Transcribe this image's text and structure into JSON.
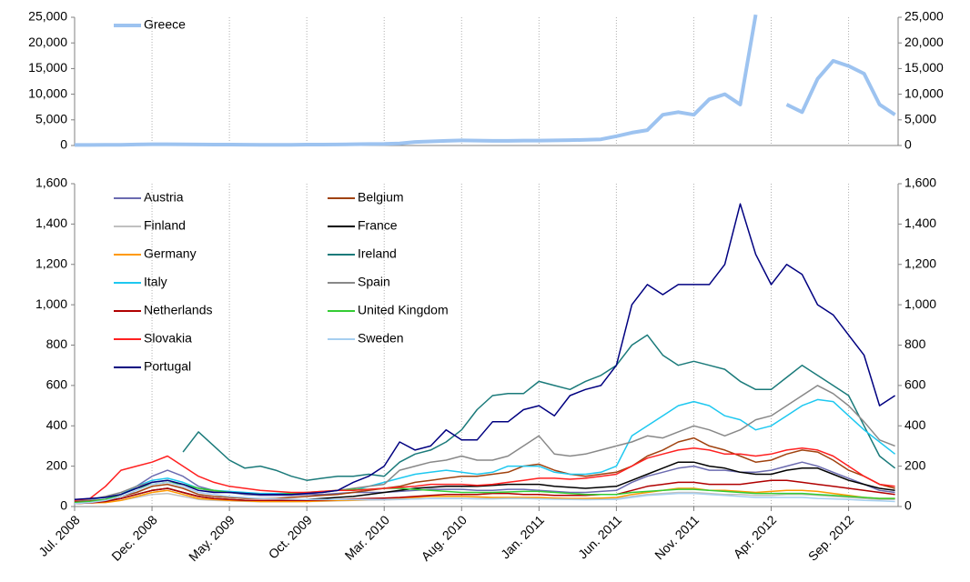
{
  "chart_data": [
    {
      "type": "line",
      "ylim": [
        0,
        25000
      ],
      "yticks": [
        0,
        {
          "value": 5000,
          "label": "5,000"
        },
        {
          "value": 10000,
          "label": "10,000"
        },
        {
          "value": 15000,
          "label": "15,000"
        },
        {
          "value": 20000,
          "label": "20,000"
        },
        {
          "value": 25000,
          "label": "25,000"
        }
      ],
      "series": [
        {
          "name": "Greece",
          "color": "#9dc3f0",
          "values": [
            100,
            110,
            120,
            150,
            200,
            250,
            250,
            220,
            200,
            180,
            170,
            160,
            150,
            140,
            150,
            170,
            180,
            200,
            250,
            280,
            300,
            400,
            700,
            800,
            900,
            1000,
            950,
            900,
            900,
            950,
            950,
            1000,
            1050,
            1100,
            1200,
            1800,
            2500,
            3000,
            6000,
            6500,
            6000,
            9000,
            10000,
            8000,
            25500,
            null,
            8000,
            6500,
            13000,
            16500,
            15500,
            14000,
            8000,
            6000
          ]
        }
      ]
    },
    {
      "type": "line",
      "ylim": [
        0,
        1600
      ],
      "yticks": [
        0,
        200,
        400,
        600,
        800,
        {
          "value": 1000,
          "label": "1,000"
        },
        {
          "value": 1200,
          "label": "1,200"
        },
        {
          "value": 1400,
          "label": "1,400"
        },
        {
          "value": 1600,
          "label": "1,600"
        }
      ],
      "categories": [
        "Jul. 2008",
        null,
        null,
        null,
        null,
        "Dec. 2008",
        null,
        null,
        null,
        null,
        "May. 2009",
        null,
        null,
        null,
        null,
        "Oct. 2009",
        null,
        null,
        null,
        null,
        "Mar. 2010",
        null,
        null,
        null,
        null,
        "Aug. 2010",
        null,
        null,
        null,
        null,
        "Jan. 2011",
        null,
        null,
        null,
        null,
        "Jun. 2011",
        null,
        null,
        null,
        null,
        "Nov. 2011",
        null,
        null,
        null,
        null,
        "Apr. 2012",
        null,
        null,
        null,
        null,
        "Sep. 2012",
        null,
        null,
        null
      ],
      "series": [
        {
          "name": "Austria",
          "color": "#6b6bb0",
          "values": [
            20,
            25,
            35,
            60,
            100,
            150,
            180,
            150,
            100,
            80,
            70,
            60,
            55,
            55,
            55,
            60,
            60,
            65,
            70,
            70,
            70,
            75,
            80,
            85,
            85,
            85,
            80,
            80,
            85,
            85,
            80,
            75,
            70,
            70,
            75,
            80,
            120,
            150,
            170,
            190,
            200,
            180,
            180,
            170,
            170,
            180,
            200,
            220,
            200,
            170,
            140,
            110,
            80,
            70
          ]
        },
        {
          "name": "Belgium",
          "color": "#a0420f",
          "values": [
            25,
            28,
            35,
            50,
            70,
            100,
            110,
            90,
            60,
            50,
            45,
            40,
            40,
            40,
            45,
            50,
            55,
            60,
            70,
            80,
            90,
            100,
            120,
            130,
            140,
            150,
            150,
            160,
            170,
            200,
            210,
            180,
            160,
            150,
            160,
            170,
            200,
            250,
            280,
            320,
            340,
            300,
            280,
            250,
            220,
            230,
            260,
            280,
            270,
            230,
            180,
            150,
            110,
            90
          ]
        },
        {
          "name": "Finland",
          "color": "#c0c0c0",
          "values": [
            15,
            18,
            22,
            30,
            45,
            60,
            65,
            50,
            35,
            30,
            28,
            26,
            24,
            24,
            24,
            25,
            26,
            28,
            30,
            32,
            33,
            35,
            38,
            40,
            40,
            40,
            40,
            40,
            40,
            40,
            40,
            38,
            36,
            36,
            38,
            40,
            50,
            60,
            65,
            70,
            70,
            65,
            60,
            60,
            55,
            55,
            60,
            60,
            55,
            50,
            45,
            40,
            35,
            35
          ]
        },
        {
          "name": "France",
          "color": "#000000",
          "values": [
            20,
            22,
            28,
            40,
            60,
            80,
            90,
            70,
            50,
            40,
            35,
            30,
            30,
            30,
            30,
            35,
            40,
            45,
            50,
            60,
            70,
            80,
            90,
            95,
            100,
            100,
            100,
            105,
            110,
            110,
            110,
            100,
            95,
            90,
            95,
            100,
            130,
            160,
            190,
            220,
            220,
            200,
            190,
            170,
            160,
            160,
            180,
            190,
            190,
            160,
            130,
            110,
            90,
            80
          ]
        },
        {
          "name": "Germany",
          "color": "#ff9900",
          "values": [
            15,
            18,
            20,
            30,
            50,
            70,
            80,
            60,
            40,
            35,
            30,
            28,
            25,
            25,
            25,
            25,
            28,
            30,
            32,
            35,
            35,
            40,
            45,
            50,
            50,
            50,
            48,
            45,
            45,
            45,
            45,
            42,
            40,
            40,
            42,
            45,
            60,
            70,
            80,
            90,
            90,
            80,
            80,
            75,
            70,
            75,
            80,
            80,
            75,
            65,
            55,
            45,
            40,
            40
          ]
        },
        {
          "name": "Ireland",
          "color": "#1a7a7a",
          "values": [
            null,
            null,
            null,
            null,
            null,
            null,
            null,
            270,
            370,
            300,
            230,
            190,
            200,
            180,
            150,
            130,
            140,
            150,
            150,
            160,
            150,
            220,
            260,
            280,
            320,
            380,
            480,
            550,
            560,
            560,
            620,
            600,
            580,
            620,
            650,
            700,
            800,
            850,
            750,
            700,
            720,
            700,
            680,
            620,
            580,
            580,
            640,
            700,
            650,
            600,
            550,
            400,
            250,
            190
          ]
        },
        {
          "name": "Italy",
          "color": "#1ec8f0",
          "values": [
            30,
            35,
            45,
            60,
            100,
            130,
            140,
            120,
            90,
            80,
            75,
            70,
            65,
            65,
            65,
            70,
            70,
            80,
            80,
            100,
            120,
            140,
            160,
            170,
            180,
            170,
            160,
            170,
            200,
            200,
            200,
            170,
            160,
            160,
            170,
            200,
            350,
            400,
            450,
            500,
            520,
            500,
            450,
            430,
            380,
            400,
            450,
            500,
            530,
            520,
            450,
            380,
            320,
            260
          ]
        },
        {
          "name": "Spain",
          "color": "#888888",
          "values": [
            30,
            35,
            50,
            70,
            100,
            120,
            130,
            110,
            90,
            75,
            70,
            65,
            60,
            60,
            60,
            65,
            70,
            80,
            90,
            100,
            110,
            180,
            200,
            220,
            230,
            250,
            230,
            230,
            250,
            300,
            350,
            260,
            250,
            260,
            280,
            300,
            320,
            350,
            340,
            370,
            400,
            380,
            350,
            380,
            430,
            450,
            500,
            550,
            600,
            560,
            500,
            420,
            330,
            300
          ]
        },
        {
          "name": "Netherlands",
          "color": "#b00000",
          "values": [
            15,
            18,
            25,
            40,
            60,
            80,
            90,
            70,
            50,
            40,
            35,
            30,
            30,
            30,
            30,
            30,
            32,
            35,
            38,
            40,
            42,
            45,
            50,
            55,
            60,
            60,
            60,
            65,
            65,
            60,
            60,
            55,
            55,
            55,
            60,
            60,
            80,
            100,
            110,
            120,
            120,
            110,
            110,
            110,
            120,
            130,
            130,
            120,
            110,
            100,
            90,
            80,
            70,
            60
          ]
        },
        {
          "name": "United Kingdom",
          "color": "#33cc33",
          "values": [
            20,
            25,
            35,
            60,
            90,
            110,
            120,
            110,
            90,
            80,
            70,
            65,
            60,
            60,
            65,
            70,
            75,
            80,
            85,
            85,
            90,
            90,
            85,
            80,
            75,
            70,
            70,
            70,
            72,
            75,
            75,
            70,
            65,
            60,
            60,
            60,
            70,
            75,
            80,
            85,
            85,
            80,
            75,
            70,
            65,
            65,
            65,
            65,
            60,
            55,
            50,
            45,
            40,
            40
          ]
        },
        {
          "name": "Slovakia",
          "color": "#ff2020",
          "values": [
            30,
            40,
            100,
            180,
            200,
            220,
            250,
            200,
            150,
            120,
            100,
            90,
            80,
            75,
            70,
            70,
            75,
            80,
            80,
            85,
            90,
            95,
            100,
            110,
            110,
            110,
            105,
            110,
            120,
            130,
            140,
            140,
            135,
            140,
            150,
            160,
            200,
            240,
            260,
            280,
            290,
            280,
            260,
            260,
            250,
            260,
            280,
            290,
            280,
            250,
            200,
            150,
            110,
            100
          ]
        },
        {
          "name": "Sweden",
          "color": "#a6cff0",
          "values": [
            15,
            20,
            30,
            50,
            80,
            110,
            120,
            100,
            70,
            60,
            50,
            45,
            40,
            38,
            36,
            35,
            35,
            35,
            35,
            35,
            35,
            36,
            38,
            40,
            40,
            40,
            38,
            38,
            40,
            40,
            38,
            36,
            35,
            34,
            35,
            35,
            45,
            55,
            60,
            65,
            65,
            60,
            55,
            50,
            45,
            45,
            45,
            45,
            40,
            38,
            35,
            30,
            28,
            25
          ]
        },
        {
          "name": "Portugal",
          "color": "#000080",
          "values": [
            35,
            40,
            45,
            60,
            90,
            120,
            130,
            110,
            80,
            70,
            70,
            65,
            60,
            60,
            60,
            65,
            70,
            80,
            120,
            150,
            200,
            320,
            280,
            300,
            380,
            330,
            330,
            420,
            420,
            480,
            500,
            450,
            550,
            580,
            600,
            700,
            1000,
            1100,
            1050,
            1100,
            1100,
            1100,
            1200,
            1500,
            1250,
            1100,
            1200,
            1150,
            1000,
            950,
            850,
            750,
            500,
            550
          ]
        }
      ]
    }
  ]
}
